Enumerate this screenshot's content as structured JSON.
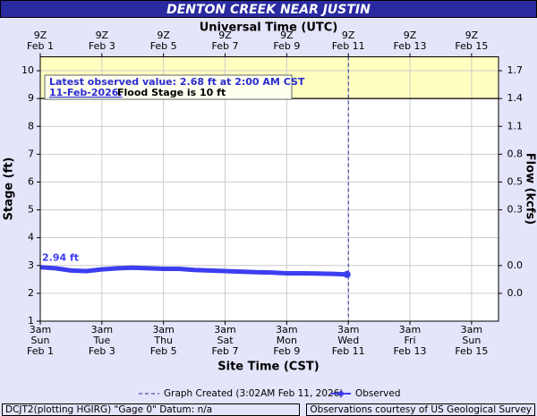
{
  "chart_data": {
    "type": "line",
    "title": "DENTON CREEK NEAR JUSTIN",
    "top_axis_label": "Universal Time (UTC)",
    "x_label": "Site Time (CST)",
    "y_label": "Stage (ft)",
    "y2_label": "Flow (kcfs)",
    "xlim": [
      "2026-02-01T03:00",
      "2026-02-16T00:00"
    ],
    "xticks": [
      {
        "value": "2026-02-01T03:00",
        "label": [
          "3am",
          "Sun",
          "Feb 1"
        ]
      },
      {
        "value": "2026-02-03T03:00",
        "label": [
          "3am",
          "Tue",
          "Feb 3"
        ]
      },
      {
        "value": "2026-02-05T03:00",
        "label": [
          "3am",
          "Thu",
          "Feb 5"
        ]
      },
      {
        "value": "2026-02-07T03:00",
        "label": [
          "3am",
          "Sat",
          "Feb 7"
        ]
      },
      {
        "value": "2026-02-09T03:00",
        "label": [
          "3am",
          "Mon",
          "Feb 9"
        ]
      },
      {
        "value": "2026-02-11T03:00",
        "label": [
          "3am",
          "Wed",
          "Feb 11"
        ]
      },
      {
        "value": "2026-02-13T03:00",
        "label": [
          "3am",
          "Fri",
          "Feb 13"
        ]
      },
      {
        "value": "2026-02-15T03:00",
        "label": [
          "3am",
          "Sun",
          "Feb 15"
        ]
      }
    ],
    "top_xticks": [
      {
        "value": "2026-02-01T03:00",
        "label": [
          "9Z",
          "Feb 1"
        ]
      },
      {
        "value": "2026-02-03T03:00",
        "label": [
          "9Z",
          "Feb 3"
        ]
      },
      {
        "value": "2026-02-05T03:00",
        "label": [
          "9Z",
          "Feb 5"
        ]
      },
      {
        "value": "2026-02-07T03:00",
        "label": [
          "9Z",
          "Feb 7"
        ]
      },
      {
        "value": "2026-02-09T03:00",
        "label": [
          "9Z",
          "Feb 9"
        ]
      },
      {
        "value": "2026-02-11T03:00",
        "label": [
          "9Z",
          "Feb 11"
        ]
      },
      {
        "value": "2026-02-13T03:00",
        "label": [
          "9Z",
          "Feb 13"
        ]
      },
      {
        "value": "2026-02-15T03:00",
        "label": [
          "9Z",
          "Feb 15"
        ]
      }
    ],
    "ylim": [
      1,
      10.5
    ],
    "yticks": [
      1,
      2,
      3,
      4,
      5,
      6,
      7,
      8,
      9,
      10
    ],
    "y2ticks": [
      {
        "stage": 10,
        "label": "1.7"
      },
      {
        "stage": 9,
        "label": "1.4"
      },
      {
        "stage": 8,
        "label": "1.1"
      },
      {
        "stage": 7,
        "label": "0.8"
      },
      {
        "stage": 6,
        "label": "0.5"
      },
      {
        "stage": 5,
        "label": "0.3"
      },
      {
        "stage": 3,
        "label": "0.0"
      },
      {
        "stage": 2,
        "label": "0.0"
      }
    ],
    "grid": true,
    "action_stage": 9,
    "flood_stage": 10,
    "band_color": "#ffffc0",
    "annotation": {
      "line1": "Latest observed value: 2.68 ft at 2:00 AM CST",
      "date": "11-Feb-2026.",
      "flood_text": "Flood Stage is 10 ft"
    },
    "created": {
      "x": "2026-02-11T03:02",
      "label": "Graph Created (3:02AM Feb 11, 2026)"
    },
    "series": [
      {
        "name": "Observed",
        "color": "#3d3df0",
        "x": [
          "2026-02-01T03:00",
          "2026-02-01T15:00",
          "2026-02-02T03:00",
          "2026-02-02T15:00",
          "2026-02-03T03:00",
          "2026-02-03T15:00",
          "2026-02-04T03:00",
          "2026-02-04T15:00",
          "2026-02-05T03:00",
          "2026-02-05T15:00",
          "2026-02-06T03:00",
          "2026-02-06T15:00",
          "2026-02-07T03:00",
          "2026-02-07T15:00",
          "2026-02-08T03:00",
          "2026-02-08T15:00",
          "2026-02-09T03:00",
          "2026-02-09T15:00",
          "2026-02-10T03:00",
          "2026-02-10T15:00",
          "2026-02-11T02:00"
        ],
        "values": [
          2.94,
          2.9,
          2.82,
          2.8,
          2.86,
          2.9,
          2.92,
          2.9,
          2.88,
          2.88,
          2.84,
          2.82,
          2.8,
          2.78,
          2.76,
          2.75,
          2.72,
          2.72,
          2.71,
          2.7,
          2.68
        ],
        "value_labels": [
          "2.94 ft",
          null,
          null,
          null,
          null,
          null,
          null,
          null,
          null,
          null,
          null,
          null,
          null,
          null,
          null,
          null,
          null,
          null,
          null,
          null,
          null
        ]
      }
    ],
    "footer_left": "DCJT2(plotting HGIRG) \"Gage 0\" Datum: n/a",
    "footer_right": "Observations courtesy of US Geological Survey"
  }
}
